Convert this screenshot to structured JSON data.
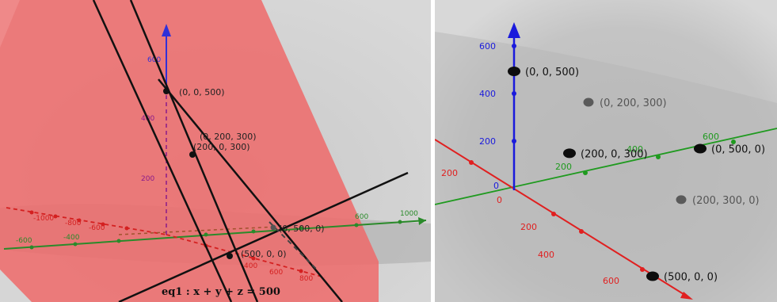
{
  "left_panel": {
    "equation_label": "eq1 : x + y + z = 500",
    "points": [
      {
        "label": "(0, 0, 500)",
        "color": "#222222"
      },
      {
        "label": "(0, 200, 300)",
        "color": "#555555"
      },
      {
        "label": "(200, 0, 300)",
        "color": "#222222"
      },
      {
        "label": "(0, 500, 0)",
        "color": "#555555"
      },
      {
        "label": "(500, 0, 0)",
        "color": "#222222"
      }
    ],
    "z_ticks": [
      "600",
      "400",
      "200"
    ],
    "y_ticks": [
      "600",
      "1000",
      "400",
      "600",
      "-600",
      "-400"
    ],
    "x_ticks": [
      "-1000",
      "-800",
      "-600",
      "400",
      "600",
      "800"
    ],
    "plane_color": "#e85a5a"
  },
  "right_panel": {
    "points": [
      {
        "label": "(0, 0, 500)",
        "x": 0,
        "y": 0,
        "z": 500
      },
      {
        "label": "(0, 200, 300)",
        "x": 0,
        "y": 200,
        "z": 300
      },
      {
        "label": "(200, 0, 300)",
        "x": 200,
        "y": 0,
        "z": 300
      },
      {
        "label": "(0, 500, 0)",
        "x": 0,
        "y": 500,
        "z": 0
      },
      {
        "label": "(200, 300, 0)",
        "x": 200,
        "y": 300,
        "z": 0
      },
      {
        "label": "(500, 0, 0)",
        "x": 500,
        "y": 0,
        "z": 0
      }
    ],
    "z_ticks": [
      "600",
      "400",
      "200"
    ],
    "y_ticks": [
      "200",
      "400",
      "600"
    ],
    "x_ticks": [
      "200",
      "200",
      "400",
      "600"
    ],
    "origin_labels": [
      "0",
      "0"
    ],
    "axis_colors": {
      "x": "#e02020",
      "y": "#1f9a1f",
      "z": "#1a1adc"
    }
  }
}
